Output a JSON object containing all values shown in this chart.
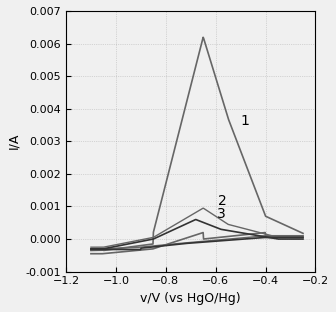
{
  "title": "",
  "xlabel": "v/V (vs HgO/Hg)",
  "ylabel": "I/A",
  "xlim": [
    -1.2,
    -0.2
  ],
  "ylim": [
    -0.001,
    0.007
  ],
  "xticks": [
    -1.2,
    -1.0,
    -0.8,
    -0.6,
    -0.4,
    -0.2
  ],
  "yticks": [
    -0.001,
    0.0,
    0.001,
    0.002,
    0.003,
    0.004,
    0.005,
    0.006,
    0.007
  ],
  "background_color": "#f0f0f0",
  "line1_color": "#666666",
  "line2_color": "#666666",
  "line3_color": "#333333",
  "label1": "1",
  "label2": "2",
  "label3": "3"
}
